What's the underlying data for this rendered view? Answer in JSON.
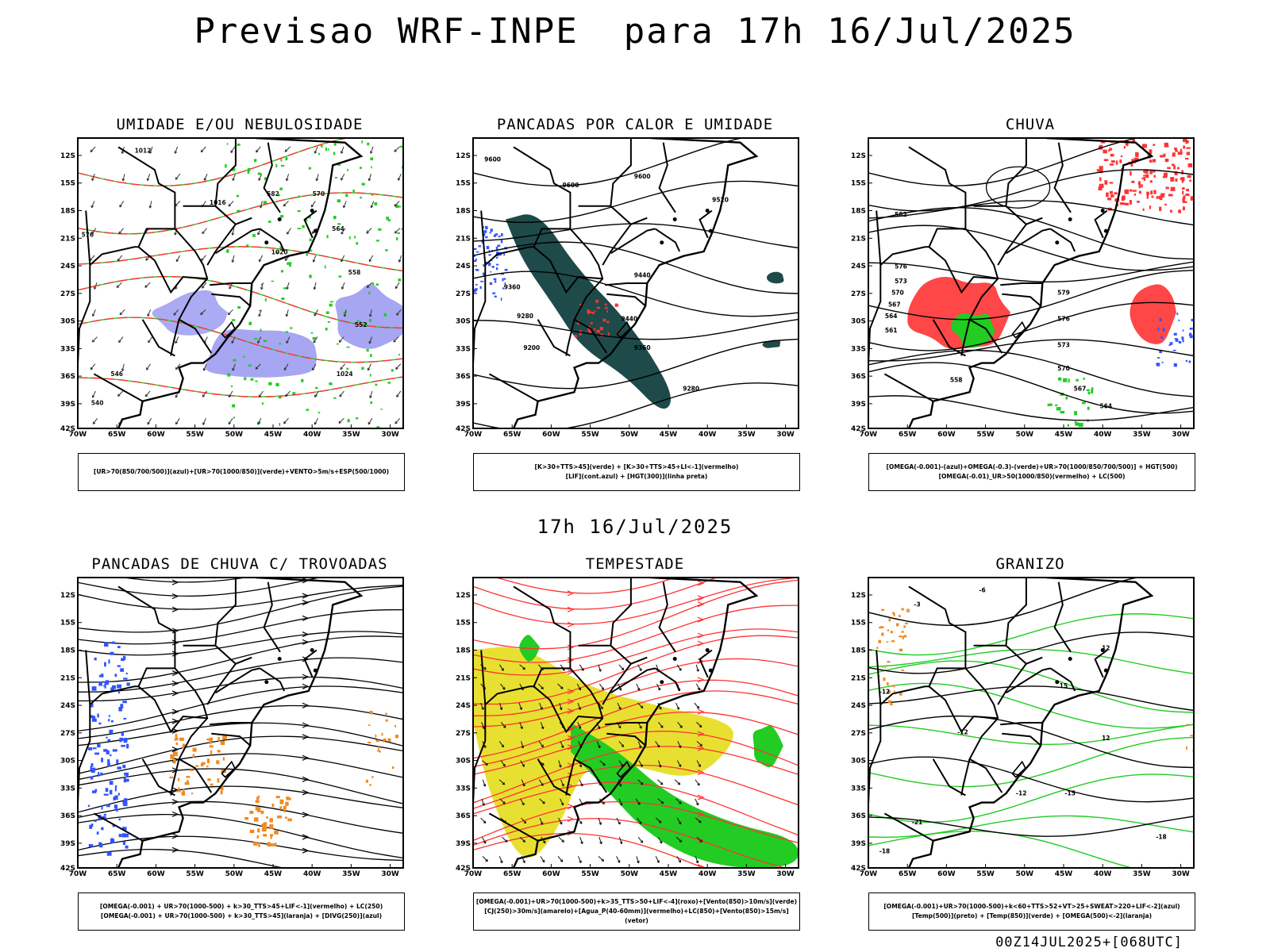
{
  "header": {
    "title": "Previsao WRF-INPE  para 17h 16/Jul/2025"
  },
  "middle": {
    "title": "17h 16/Jul/2025"
  },
  "footer": {
    "run": "00Z14JUL2025+[068UTC]"
  },
  "axes": {
    "lat_labels": [
      "12S",
      "15S",
      "18S",
      "21S",
      "24S",
      "27S",
      "30S",
      "33S",
      "36S",
      "39S",
      "42S"
    ],
    "lon_labels": [
      "70W",
      "65W",
      "60W",
      "55W",
      "50W",
      "45W",
      "40W",
      "35W",
      "30W"
    ]
  },
  "panels": [
    {
      "title": "UMIDADE E/OU NEBULOSIDADE",
      "legend": [
        "[UR>70(850/700/500)](azul)+[UR>70(1000/850)](verde)+VENTO>5m/s+ESP(500/1000)"
      ],
      "contour_labels": [
        "1012",
        "1016",
        "1020",
        "1024",
        "570",
        "564",
        "558",
        "552",
        "546",
        "540",
        "576",
        "582"
      ]
    },
    {
      "title": "PANCADAS POR CALOR E UMIDADE",
      "legend": [
        "[K>30+TTS>45](verde) + [K>30+TTS>45+LI<-1](vermelho)",
        "[LIF](cont.azul) + [HGT(300)](linha preta)"
      ],
      "contour_labels": [
        "9600",
        "9600",
        "9600",
        "9520",
        "9440",
        "9440",
        "9360",
        "9360",
        "9280",
        "9280",
        "9200"
      ]
    },
    {
      "title": "CHUVA",
      "legend": [
        "[OMEGA(-0.001)-(azul)+OMEGA(-0.3)-(verde)+UR>70(1000/850/700/500)] + HGT(500)",
        "[OMEGA(-0.01)_UR>50(1000/850)(vermelho) + LC(500)"
      ],
      "contour_labels": [
        "582",
        "576",
        "573",
        "570",
        "567",
        "564",
        "561",
        "579",
        "576",
        "573",
        "570",
        "567",
        "564",
        "558"
      ]
    },
    {
      "title": "PANCADAS DE CHUVA C/ TROVOADAS",
      "legend": [
        "[OMEGA(-0.001) + UR>70(1000-500) + k>30_TTS>45+LIF<-1](vermelho) + LC(250)",
        "[OMEGA(-0.001) + UR>70(1000-500) + k>30_TTS>45](laranja) + [DIVG(250)](azul)"
      ],
      "contour_labels": []
    },
    {
      "title": "TEMPESTADE",
      "legend": [
        "[OMEGA(-0.001)+UR>70(1000-500)+k>35_TTS>50+LIF<-4](roxo)+[Vento(850)>10m/s](verde)",
        "[CJ(250)>30m/s](amarelo)+[Agua_P(40-60mm)](vermelho)+LC(850)+[Vento(850)>15m/s](vetor)"
      ],
      "contour_labels": []
    },
    {
      "title": "GRANIZO",
      "legend": [
        "[OMEGA(-0.001)+UR>70(1000-500)+k<60+TTS>52+VT>25+SWEAT>220+LIF<-2](azul)",
        "[Temp(500)](preto) + [Temp(850)](verde) + [OMEGA(500)<-2](laranja)"
      ],
      "contour_labels": [
        "-6",
        "-3",
        "-12",
        "-12",
        "-15",
        "-18",
        "-21",
        "-18",
        "-12",
        "12",
        "15",
        "12"
      ]
    }
  ],
  "colors": {
    "green": "#22cc22",
    "red": "#ff3333",
    "blue": "#3355ff",
    "orange": "#f08a24",
    "yellow": "#e8e030",
    "teal": "#1e4a4a",
    "purple": "#8888ee"
  }
}
